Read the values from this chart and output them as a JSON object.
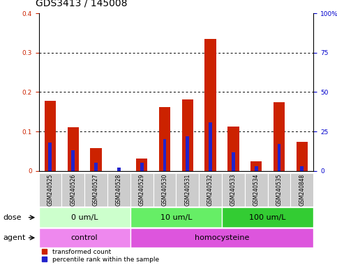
{
  "title": "GDS3413 / 145008",
  "samples": [
    "GSM240525",
    "GSM240526",
    "GSM240527",
    "GSM240528",
    "GSM240529",
    "GSM240530",
    "GSM240531",
    "GSM240532",
    "GSM240533",
    "GSM240534",
    "GSM240535",
    "GSM240848"
  ],
  "transformed_count": [
    0.178,
    0.11,
    0.057,
    0.0,
    0.031,
    0.162,
    0.181,
    0.335,
    0.112,
    0.025,
    0.175,
    0.073
  ],
  "percentile_rank_pct": [
    18,
    13,
    5,
    2,
    5,
    20,
    22,
    31,
    12,
    3,
    17,
    3
  ],
  "red_color": "#cc2200",
  "blue_color": "#2222cc",
  "ylim_left": [
    0,
    0.4
  ],
  "ylim_right": [
    0,
    100
  ],
  "yticks_left": [
    0,
    0.1,
    0.2,
    0.3,
    0.4
  ],
  "yticks_right": [
    0,
    25,
    50,
    75,
    100
  ],
  "ytick_labels_left": [
    "0",
    "0.1",
    "0.2",
    "0.3",
    "0.4"
  ],
  "ytick_labels_right": [
    "0",
    "25",
    "50",
    "75",
    "100%"
  ],
  "dose_groups": [
    {
      "label": "0 um/L",
      "start": 0,
      "end": 4,
      "color": "#ccffcc"
    },
    {
      "label": "10 um/L",
      "start": 4,
      "end": 8,
      "color": "#66ee66"
    },
    {
      "label": "100 um/L",
      "start": 8,
      "end": 12,
      "color": "#33cc33"
    }
  ],
  "agent_groups": [
    {
      "label": "control",
      "start": 0,
      "end": 4,
      "color": "#ee88ee"
    },
    {
      "label": "homocysteine",
      "start": 4,
      "end": 12,
      "color": "#dd55dd"
    }
  ],
  "dose_label": "dose",
  "agent_label": "agent",
  "legend_red": "transformed count",
  "legend_blue": "percentile rank within the sample",
  "red_bar_width": 0.5,
  "blue_bar_width": 0.15,
  "tick_area_color": "#cccccc",
  "title_fontsize": 10,
  "tick_fontsize": 6.5,
  "label_fontsize": 8,
  "dose_fontsize": 8,
  "agent_fontsize": 8,
  "sample_fontsize": 5.5
}
